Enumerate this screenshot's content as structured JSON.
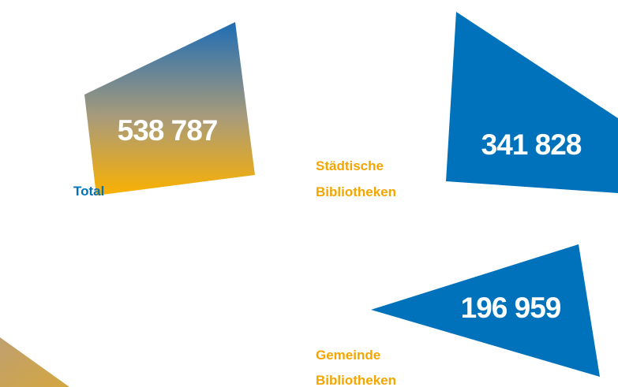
{
  "items": [
    {
      "label": [
        "Total"
      ],
      "value": "538 787"
    },
    {
      "label": [
        "Städtische",
        "Bibliotheken"
      ],
      "value": "341 828"
    },
    {
      "label": [
        "Gemeinde",
        "Bibliotheken"
      ],
      "value": "196 959"
    }
  ]
}
